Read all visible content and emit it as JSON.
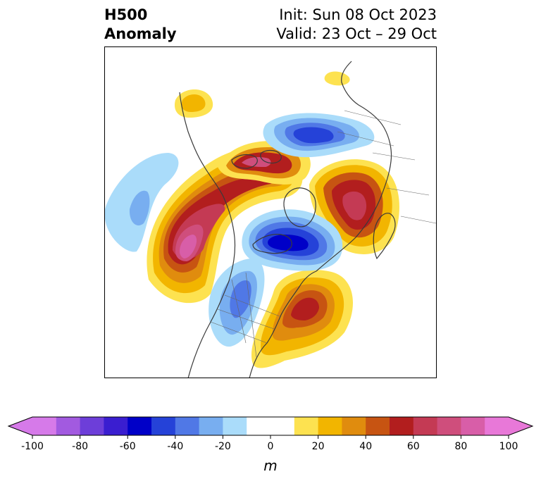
{
  "title": {
    "left_line1": "H500",
    "left_line2": "Anomaly",
    "right_line1": "Init: Sun 08 Oct 2023",
    "right_line2": "Valid: 23 Oct – 29 Oct"
  },
  "map": {
    "projection": "polar stereographic (North Pole)",
    "field": "500 hPa geopotential height anomaly"
  },
  "colorbar": {
    "unit": "m",
    "extend": "both",
    "ticks": [
      "-100",
      "-80",
      "-60",
      "-40",
      "-20",
      "0",
      "20",
      "40",
      "60",
      "80",
      "100"
    ],
    "levels": [
      -100,
      -90,
      -80,
      -70,
      -60,
      -50,
      -40,
      -30,
      -20,
      -10,
      10,
      20,
      30,
      40,
      50,
      60,
      70,
      80,
      90,
      100
    ],
    "colors": [
      "#d67ae9",
      "#a25ae0",
      "#6d3ed9",
      "#3a1ed0",
      "#0000c8",
      "#2542d8",
      "#5078e6",
      "#78aef0",
      "#aadcfa",
      "#ffffff",
      "#fde250",
      "#f2b500",
      "#e08c0e",
      "#c75412",
      "#b21e1e",
      "#c43a54",
      "#cf4e7c",
      "#d85ea8",
      "#e878d8"
    ],
    "under_color": "#d67ae9",
    "over_color": "#e878d8"
  }
}
